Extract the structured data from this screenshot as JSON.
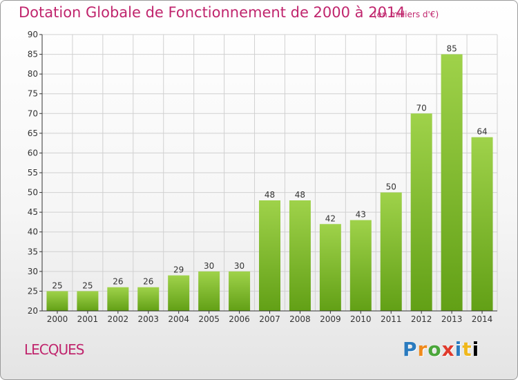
{
  "chart_data": {
    "type": "bar",
    "title": "Dotation Globale de Fonctionnement de 2000 à 2014",
    "subtitle": "(en milliers d'€)",
    "categories": [
      "2000",
      "2001",
      "2002",
      "2003",
      "2004",
      "2005",
      "2006",
      "2007",
      "2008",
      "2009",
      "2010",
      "2011",
      "2012",
      "2013",
      "2014"
    ],
    "values": [
      25,
      25,
      26,
      26,
      29,
      30,
      30,
      48,
      48,
      42,
      43,
      50,
      70,
      85,
      64
    ],
    "ylim": [
      20,
      90
    ],
    "yticks": [
      20,
      25,
      30,
      35,
      40,
      45,
      50,
      55,
      60,
      65,
      70,
      75,
      80,
      85,
      90
    ],
    "grid": true,
    "xlabel": "",
    "ylabel": "",
    "colors": {
      "bar_top": "#9fd24a",
      "bar_bottom": "#62a016",
      "grid": "#d0d0d0",
      "axis": "#333333"
    }
  },
  "footer": {
    "town": "LECQUES",
    "logo_letters": [
      "P",
      "r",
      "o",
      "x",
      "i",
      "t",
      "i"
    ]
  }
}
